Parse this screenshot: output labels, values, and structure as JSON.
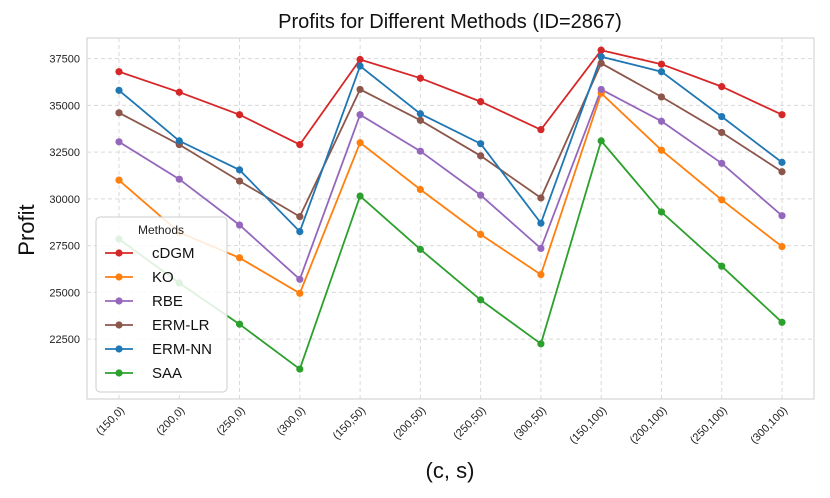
{
  "chart_data": {
    "type": "line",
    "title": "Profits for Different Methods (ID=2867)",
    "xlabel": "(c, s)",
    "ylabel": "Profit",
    "categories": [
      "(150,0)",
      "(200,0)",
      "(250,0)",
      "(300,0)",
      "(150,50)",
      "(200,50)",
      "(250,50)",
      "(300,50)",
      "(150,100)",
      "(200,100)",
      "(250,100)",
      "(300,100)"
    ],
    "yticks": [
      22500,
      25000,
      27500,
      30000,
      32500,
      35000,
      37500
    ],
    "ylim": [
      19300,
      38600
    ],
    "grid": true,
    "legend": {
      "title": "Methods",
      "position": "center-left"
    },
    "series": [
      {
        "name": "cDGM",
        "color": "#d62728",
        "values": [
          36800,
          35700,
          34500,
          32900,
          37450,
          36450,
          35200,
          33700,
          37950,
          37200,
          36000,
          34500
        ]
      },
      {
        "name": "KO",
        "color": "#ff7f0e",
        "values": [
          31000,
          28200,
          26850,
          24950,
          33000,
          30500,
          28100,
          25950,
          35650,
          32600,
          29950,
          27450
        ]
      },
      {
        "name": "RBE",
        "color": "#9467bd",
        "values": [
          33050,
          31050,
          28600,
          25700,
          34500,
          32550,
          30200,
          27350,
          35850,
          34150,
          31900,
          29100
        ]
      },
      {
        "name": "ERM-LR",
        "color": "#8c564b",
        "values": [
          34600,
          32900,
          30950,
          29050,
          35850,
          34200,
          32300,
          30050,
          37250,
          35450,
          33550,
          31450
        ]
      },
      {
        "name": "ERM-NN",
        "color": "#1f77b4",
        "values": [
          35800,
          33100,
          31550,
          28250,
          37100,
          34550,
          32950,
          28700,
          37600,
          36800,
          34400,
          31950
        ]
      },
      {
        "name": "SAA",
        "color": "#2ca02c",
        "values": [
          27850,
          25500,
          23300,
          20900,
          30150,
          27300,
          24600,
          22250,
          33100,
          29300,
          26400,
          23400
        ]
      }
    ]
  }
}
